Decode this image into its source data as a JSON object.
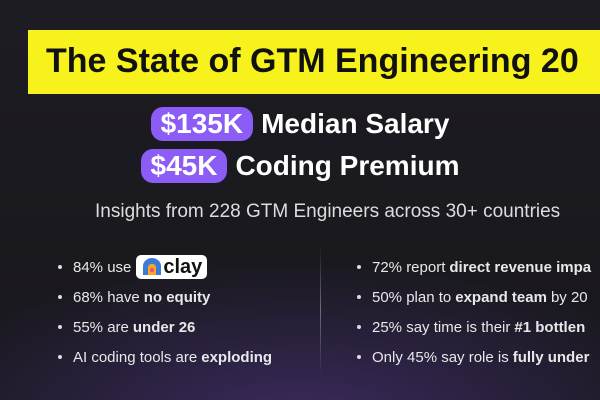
{
  "banner": {
    "title": "The State of GTM Engineering 20"
  },
  "headline": [
    {
      "pill": "$135K",
      "text": "Median Salary"
    },
    {
      "pill": "$45K",
      "text": "Coding Premium"
    }
  ],
  "subtitle": "Insights from 228 GTM Engineers across 30+ countries",
  "left_bullets": [
    [
      {
        "text": "84% use",
        "bold": false
      },
      {
        "logo": "clay"
      }
    ],
    [
      {
        "text": "68% have",
        "bold": false
      },
      {
        "text": "no equity",
        "bold": true
      }
    ],
    [
      {
        "text": "55% are",
        "bold": false
      },
      {
        "text": "under 26",
        "bold": true
      }
    ],
    [
      {
        "text": "AI coding tools are",
        "bold": false
      },
      {
        "text": "exploding",
        "bold": true
      }
    ]
  ],
  "right_bullets": [
    [
      {
        "text": "72% report",
        "bold": false
      },
      {
        "text": "direct revenue impa",
        "bold": true
      }
    ],
    [
      {
        "text": "50% plan to",
        "bold": false
      },
      {
        "text": "expand team",
        "bold": true
      },
      {
        "text": "by 20",
        "bold": false
      }
    ],
    [
      {
        "text": "25% say time is their",
        "bold": false
      },
      {
        "text": "#1 bottlen",
        "bold": true
      }
    ],
    [
      {
        "text": "Only 45% say role is",
        "bold": false
      },
      {
        "text": "fully under",
        "bold": true
      }
    ]
  ]
}
